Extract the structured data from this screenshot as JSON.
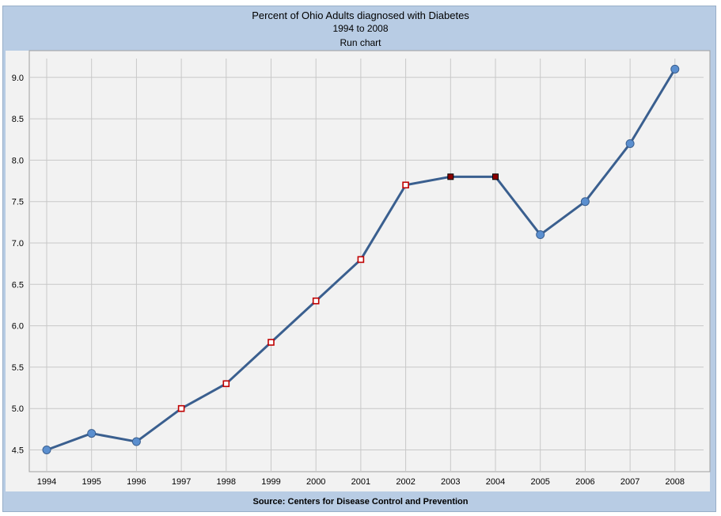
{
  "chart_data": {
    "type": "line",
    "title": "Percent of Ohio Adults diagnosed with Diabetes",
    "subtitle": "1994 to 2008",
    "caption": "Run chart",
    "source": "Source: Centers for Disease Control and Prevention",
    "xlabel": "",
    "ylabel": "",
    "ylim": [
      4.3,
      9.2
    ],
    "grid": true,
    "categories": [
      "1994",
      "1995",
      "1996",
      "1997",
      "1998",
      "1999",
      "2000",
      "2001",
      "2002",
      "2003",
      "2004",
      "2005",
      "2006",
      "2007",
      "2008"
    ],
    "series": [
      {
        "values": [
          4.5,
          4.7,
          4.6,
          5.0,
          5.3,
          5.8,
          6.3,
          6.8,
          7.7,
          7.8,
          7.8,
          7.1,
          7.5,
          8.2,
          9.1
        ],
        "markers": [
          "circle",
          "circle",
          "circle",
          "open-square",
          "open-square",
          "open-square",
          "open-square",
          "open-square",
          "open-square",
          "filled-square",
          "filled-square",
          "circle",
          "circle",
          "circle",
          "circle"
        ]
      }
    ],
    "yticks": [
      "4.5",
      "5.0",
      "5.5",
      "6.0",
      "6.5",
      "7.0",
      "7.5",
      "8.0",
      "8.5",
      "9.0"
    ],
    "colors": {
      "line": "#3a5f8f",
      "circle_fill": "#5b8fcf",
      "square_border": "#c00000",
      "filled_square": "#8b0000",
      "plot_background": "#f2f2f2",
      "frame": "#b8cce4",
      "grid": "#c8c8c8"
    }
  }
}
